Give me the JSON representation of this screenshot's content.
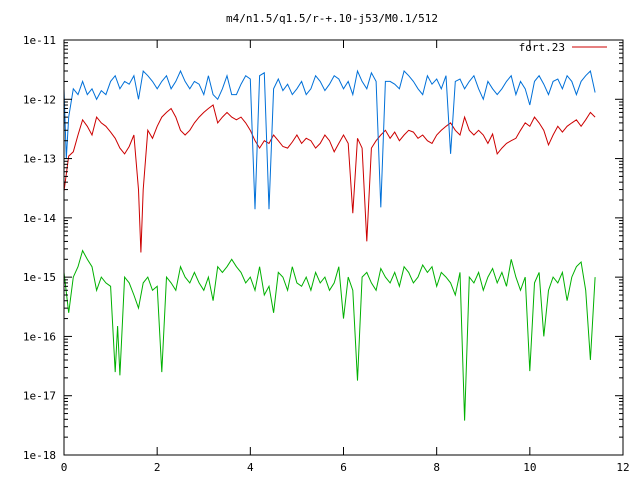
{
  "chart_data": {
    "type": "line",
    "title": "m4/n1.5/q1.5/r-+.10-j53/M0.1/512",
    "xlabel": "",
    "ylabel": "",
    "xlim": [
      0,
      12
    ],
    "ylim": [
      1e-18,
      1e-11
    ],
    "yscale": "log",
    "grid": false,
    "legend_position": "top-right",
    "x_ticks": [
      {
        "value": 0,
        "label": "0"
      },
      {
        "value": 2,
        "label": "2"
      },
      {
        "value": 4,
        "label": "4"
      },
      {
        "value": 6,
        "label": "6"
      },
      {
        "value": 8,
        "label": "8"
      },
      {
        "value": 10,
        "label": "10"
      },
      {
        "value": 12,
        "label": "12"
      }
    ],
    "y_ticks": [
      {
        "value": 1e-18,
        "label": "1e-18"
      },
      {
        "value": 1e-17,
        "label": "1e-17"
      },
      {
        "value": 1e-16,
        "label": "1e-16"
      },
      {
        "value": 1e-15,
        "label": "1e-15"
      },
      {
        "value": 1e-14,
        "label": "1e-14"
      },
      {
        "value": 1e-13,
        "label": "1e-13"
      },
      {
        "value": 1e-12,
        "label": "1e-12"
      },
      {
        "value": 1e-11,
        "label": "1e-11"
      }
    ],
    "series": [
      {
        "name": "fort.23",
        "color": "#cc0000",
        "in_legend": true,
        "x": [
          0.0,
          0.1,
          0.2,
          0.3,
          0.4,
          0.5,
          0.6,
          0.7,
          0.8,
          0.9,
          1.0,
          1.1,
          1.2,
          1.3,
          1.4,
          1.5,
          1.6,
          1.65,
          1.7,
          1.8,
          1.9,
          2.0,
          2.1,
          2.2,
          2.3,
          2.4,
          2.5,
          2.6,
          2.7,
          2.8,
          2.9,
          3.0,
          3.1,
          3.2,
          3.3,
          3.4,
          3.5,
          3.6,
          3.7,
          3.8,
          3.9,
          4.0,
          4.1,
          4.2,
          4.3,
          4.4,
          4.5,
          4.6,
          4.7,
          4.8,
          4.9,
          5.0,
          5.1,
          5.2,
          5.3,
          5.4,
          5.5,
          5.6,
          5.7,
          5.8,
          5.9,
          6.0,
          6.1,
          6.2,
          6.3,
          6.4,
          6.5,
          6.6,
          6.7,
          6.8,
          6.9,
          7.0,
          7.1,
          7.2,
          7.3,
          7.4,
          7.5,
          7.6,
          7.7,
          7.8,
          7.9,
          8.0,
          8.1,
          8.2,
          8.3,
          8.4,
          8.5,
          8.6,
          8.7,
          8.8,
          8.9,
          9.0,
          9.1,
          9.2,
          9.3,
          9.4,
          9.5,
          9.6,
          9.7,
          9.8,
          9.9,
          10.0,
          10.1,
          10.2,
          10.3,
          10.4,
          10.5,
          10.6,
          10.7,
          10.8,
          10.9,
          11.0,
          11.1,
          11.2,
          11.3,
          11.4
        ],
        "y": [
          2.8e-14,
          1.1e-13,
          1.3e-13,
          2.5e-13,
          4.5e-13,
          3.5e-13,
          2.5e-13,
          5e-13,
          4e-13,
          3.5e-13,
          2.8e-13,
          2.2e-13,
          1.5e-13,
          1.2e-13,
          1.6e-13,
          2.5e-13,
          3e-14,
          2.6e-15,
          3e-14,
          3e-13,
          2.2e-13,
          3.5e-13,
          5e-13,
          6e-13,
          7e-13,
          5e-13,
          3e-13,
          2.5e-13,
          3e-13,
          4e-13,
          5e-13,
          6e-13,
          7e-13,
          8e-13,
          4e-13,
          5e-13,
          6e-13,
          5e-13,
          4.5e-13,
          5e-13,
          4e-13,
          3e-13,
          2e-13,
          1.5e-13,
          2e-13,
          1.8e-13,
          2.5e-13,
          2e-13,
          1.6e-13,
          1.5e-13,
          1.9e-13,
          2.5e-13,
          1.8e-13,
          2.2e-13,
          2e-13,
          1.5e-13,
          1.8e-13,
          2.5e-13,
          2e-13,
          1.3e-13,
          1.8e-13,
          2.5e-13,
          1.8e-13,
          1.2e-14,
          2.2e-13,
          1.5e-13,
          4e-15,
          1.5e-13,
          2e-13,
          2.5e-13,
          3e-13,
          2.2e-13,
          2.8e-13,
          2e-13,
          2.5e-13,
          3e-13,
          2.8e-13,
          2.2e-13,
          2.5e-13,
          2e-13,
          1.8e-13,
          2.5e-13,
          3e-13,
          3.5e-13,
          4e-13,
          3e-13,
          2.5e-13,
          5e-13,
          3e-13,
          2.5e-13,
          3e-13,
          2.5e-13,
          1.8e-13,
          2.6e-13,
          1.2e-13,
          1.5e-13,
          1.8e-13,
          2e-13,
          2.2e-13,
          3e-13,
          4e-13,
          3.5e-13,
          5e-13,
          4e-13,
          3e-13,
          1.7e-13,
          2.5e-13,
          3.5e-13,
          2.8e-13,
          3.5e-13,
          4e-13,
          4.5e-13,
          3.5e-13,
          4.5e-13,
          6e-13,
          5e-13
        ]
      },
      {
        "name": "",
        "color": "#0070d8",
        "in_legend": false,
        "x": [
          0.0,
          0.05,
          0.1,
          0.2,
          0.3,
          0.4,
          0.5,
          0.6,
          0.7,
          0.8,
          0.9,
          1.0,
          1.1,
          1.2,
          1.3,
          1.4,
          1.5,
          1.6,
          1.7,
          1.8,
          1.9,
          2.0,
          2.1,
          2.2,
          2.3,
          2.4,
          2.5,
          2.6,
          2.7,
          2.8,
          2.9,
          3.0,
          3.1,
          3.2,
          3.3,
          3.4,
          3.5,
          3.6,
          3.7,
          3.8,
          3.9,
          4.0,
          4.1,
          4.2,
          4.3,
          4.4,
          4.5,
          4.6,
          4.7,
          4.8,
          4.9,
          5.0,
          5.1,
          5.2,
          5.3,
          5.4,
          5.5,
          5.6,
          5.7,
          5.8,
          5.9,
          6.0,
          6.1,
          6.2,
          6.3,
          6.4,
          6.5,
          6.6,
          6.7,
          6.8,
          6.9,
          7.0,
          7.1,
          7.2,
          7.3,
          7.4,
          7.5,
          7.6,
          7.7,
          7.8,
          7.9,
          8.0,
          8.1,
          8.2,
          8.3,
          8.4,
          8.5,
          8.6,
          8.7,
          8.8,
          8.9,
          9.0,
          9.1,
          9.2,
          9.3,
          9.4,
          9.5,
          9.6,
          9.7,
          9.8,
          9.9,
          10.0,
          10.1,
          10.2,
          10.3,
          10.4,
          10.5,
          10.6,
          10.7,
          10.8,
          10.9,
          11.0,
          11.1,
          11.2,
          11.3,
          11.4
        ],
        "y": [
          1.5e-12,
          1e-13,
          5e-13,
          1.5e-12,
          1.2e-12,
          2e-12,
          1.2e-12,
          1.5e-12,
          1e-12,
          1.4e-12,
          1.2e-12,
          2e-12,
          2.5e-12,
          1.5e-12,
          2e-12,
          1.8e-12,
          2.5e-12,
          1e-12,
          3e-12,
          2.5e-12,
          2e-12,
          1.5e-12,
          2e-12,
          2.5e-12,
          1.5e-12,
          2e-12,
          3e-12,
          2e-12,
          1.5e-12,
          2e-12,
          1.8e-12,
          1.2e-12,
          2.5e-12,
          1.2e-12,
          1e-12,
          1.5e-12,
          2.5e-12,
          1.2e-12,
          1.2e-12,
          1.8e-12,
          2.5e-12,
          2.2e-12,
          1.4e-14,
          2.5e-12,
          2.8e-12,
          1.4e-14,
          1.5e-12,
          2.2e-12,
          1.4e-12,
          1.8e-12,
          1.2e-12,
          1.5e-12,
          2e-12,
          1.2e-12,
          1.5e-12,
          2.5e-12,
          2e-12,
          1.4e-12,
          1.8e-12,
          2.5e-12,
          2.2e-12,
          1.5e-12,
          2e-12,
          1.2e-12,
          3e-12,
          2e-12,
          1.5e-12,
          2.8e-12,
          2e-12,
          1.5e-14,
          2e-12,
          2e-12,
          1.8e-12,
          1.5e-12,
          3e-12,
          2.5e-12,
          2e-12,
          1.5e-12,
          1.2e-12,
          2.5e-12,
          1.8e-12,
          2.2e-12,
          1.5e-12,
          2.5e-12,
          1.2e-13,
          2e-12,
          2.2e-12,
          1.5e-12,
          2e-12,
          2.5e-12,
          1.5e-12,
          1e-12,
          2e-12,
          1.5e-12,
          1.2e-12,
          1.5e-12,
          2e-12,
          2.5e-12,
          1.2e-12,
          2e-12,
          1.5e-12,
          8e-13,
          2e-12,
          2.5e-12,
          1.8e-12,
          1.2e-12,
          2e-12,
          2.2e-12,
          1.5e-12,
          2.5e-12,
          2e-12,
          1.2e-12,
          2e-12,
          2.5e-12,
          3e-12,
          1.3e-12
        ]
      },
      {
        "name": "",
        "color": "#00b000",
        "in_legend": false,
        "x": [
          0.0,
          0.1,
          0.2,
          0.3,
          0.4,
          0.5,
          0.6,
          0.7,
          0.8,
          0.9,
          1.0,
          1.1,
          1.15,
          1.2,
          1.3,
          1.4,
          1.5,
          1.6,
          1.7,
          1.8,
          1.9,
          2.0,
          2.1,
          2.2,
          2.3,
          2.4,
          2.5,
          2.6,
          2.7,
          2.8,
          2.9,
          3.0,
          3.1,
          3.2,
          3.3,
          3.4,
          3.5,
          3.6,
          3.7,
          3.8,
          3.9,
          4.0,
          4.1,
          4.2,
          4.3,
          4.4,
          4.5,
          4.6,
          4.7,
          4.8,
          4.9,
          5.0,
          5.1,
          5.2,
          5.3,
          5.4,
          5.5,
          5.6,
          5.7,
          5.8,
          5.9,
          6.0,
          6.1,
          6.2,
          6.3,
          6.4,
          6.5,
          6.6,
          6.7,
          6.8,
          6.9,
          7.0,
          7.1,
          7.2,
          7.3,
          7.4,
          7.5,
          7.6,
          7.7,
          7.8,
          7.9,
          8.0,
          8.1,
          8.2,
          8.3,
          8.4,
          8.5,
          8.6,
          8.7,
          8.8,
          8.9,
          9.0,
          9.1,
          9.2,
          9.3,
          9.4,
          9.5,
          9.6,
          9.7,
          9.8,
          9.9,
          10.0,
          10.1,
          10.2,
          10.3,
          10.4,
          10.5,
          10.6,
          10.7,
          10.8,
          10.9,
          11.0,
          11.1,
          11.2,
          11.3,
          11.4
        ],
        "y": [
          1.2e-15,
          2.5e-16,
          1e-15,
          1.5e-15,
          2.8e-15,
          2e-15,
          1.5e-15,
          6e-16,
          1e-15,
          8e-16,
          7e-16,
          2.5e-17,
          1.5e-16,
          2.2e-17,
          1e-15,
          8e-16,
          5e-16,
          3e-16,
          8e-16,
          1e-15,
          6e-16,
          7e-16,
          2.5e-17,
          1e-15,
          8e-16,
          6e-16,
          1.5e-15,
          1e-15,
          8e-16,
          1.2e-15,
          8e-16,
          6e-16,
          1e-15,
          4e-16,
          1.5e-15,
          1.2e-15,
          1.5e-15,
          2e-15,
          1.5e-15,
          1.2e-15,
          8e-16,
          1e-15,
          6e-16,
          1.5e-15,
          5e-16,
          7e-16,
          2.5e-16,
          1.2e-15,
          1e-15,
          6e-16,
          1.5e-15,
          8e-16,
          7e-16,
          1e-15,
          6e-16,
          1.2e-15,
          8e-16,
          1e-15,
          6e-16,
          8e-16,
          1.5e-15,
          2e-16,
          1e-15,
          6e-16,
          1.8e-17,
          1e-15,
          1.2e-15,
          8e-16,
          6e-16,
          1.4e-15,
          1e-15,
          8e-16,
          1.2e-15,
          7e-16,
          1.5e-15,
          1.2e-15,
          8e-16,
          1e-15,
          1.6e-15,
          1.2e-15,
          1.5e-15,
          7e-16,
          1.2e-15,
          1e-15,
          8e-16,
          5e-16,
          1.2e-15,
          3.8e-18,
          1e-15,
          8e-16,
          1.2e-15,
          6e-16,
          1e-15,
          1.4e-15,
          8e-16,
          1.2e-15,
          7e-16,
          2e-15,
          1e-15,
          6e-16,
          1e-15,
          2.6e-17,
          8e-16,
          1.2e-15,
          1e-16,
          6e-16,
          1e-15,
          8e-16,
          1.2e-15,
          4e-16,
          1e-15,
          1.5e-15,
          1.8e-15,
          6e-16,
          4e-17,
          1e-15
        ]
      }
    ]
  }
}
